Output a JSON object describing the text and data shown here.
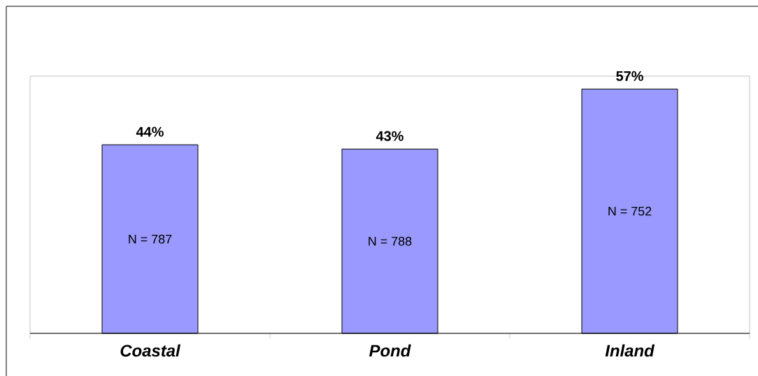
{
  "chart_data": {
    "type": "bar",
    "categories": [
      "Coastal",
      "Pond",
      "Inland"
    ],
    "values": [
      44,
      43,
      57
    ],
    "color": "#9999ff",
    "value_labels": [
      "44%",
      "43%",
      "57%"
    ],
    "ylim": [
      0,
      60
    ],
    "tick_labels": "x",
    "annotations": [
      "N = 787",
      "N = 788",
      "N = 752"
    ]
  }
}
